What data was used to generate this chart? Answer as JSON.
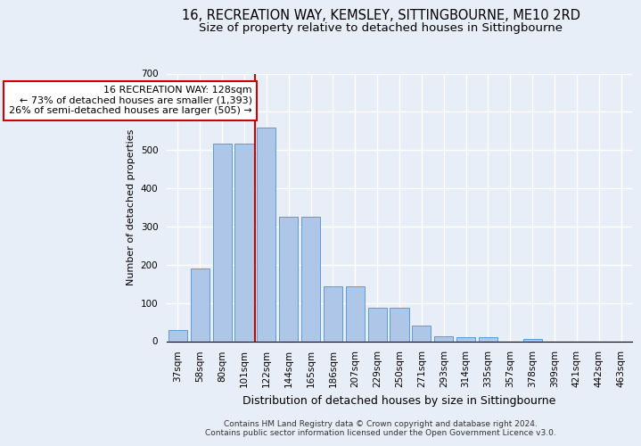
{
  "title1": "16, RECREATION WAY, KEMSLEY, SITTINGBOURNE, ME10 2RD",
  "title2": "Size of property relative to detached houses in Sittingbourne",
  "xlabel": "Distribution of detached houses by size in Sittingbourne",
  "ylabel": "Number of detached properties",
  "categories": [
    "37sqm",
    "58sqm",
    "80sqm",
    "101sqm",
    "122sqm",
    "144sqm",
    "165sqm",
    "186sqm",
    "207sqm",
    "229sqm",
    "250sqm",
    "271sqm",
    "293sqm",
    "314sqm",
    "335sqm",
    "357sqm",
    "378sqm",
    "399sqm",
    "421sqm",
    "442sqm",
    "463sqm"
  ],
  "values": [
    30,
    190,
    517,
    517,
    560,
    325,
    325,
    143,
    143,
    87,
    87,
    40,
    14,
    11,
    11,
    0,
    5,
    0,
    0,
    0,
    0
  ],
  "bar_color": "#aec6e8",
  "bar_edge_color": "#5b9bd5",
  "vline_color": "#cc0000",
  "vline_index": 4,
  "annotation_text": "16 RECREATION WAY: 128sqm\n← 73% of detached houses are smaller (1,393)\n26% of semi-detached houses are larger (505) →",
  "annotation_box_color": "#ffffff",
  "annotation_box_edge": "#cc0000",
  "footer": "Contains HM Land Registry data © Crown copyright and database right 2024.\nContains public sector information licensed under the Open Government Licence v3.0.",
  "ylim": [
    0,
    700
  ],
  "yticks": [
    0,
    100,
    200,
    300,
    400,
    500,
    600,
    700
  ],
  "background_color": "#e8eef7",
  "plot_bg_color": "#e8eef7",
  "grid_color": "#ffffff",
  "title_fontsize": 10.5,
  "subtitle_fontsize": 9.5,
  "annot_fontsize": 8,
  "ylabel_fontsize": 8,
  "xlabel_fontsize": 9,
  "tick_fontsize": 7.5,
  "footer_fontsize": 6.5
}
